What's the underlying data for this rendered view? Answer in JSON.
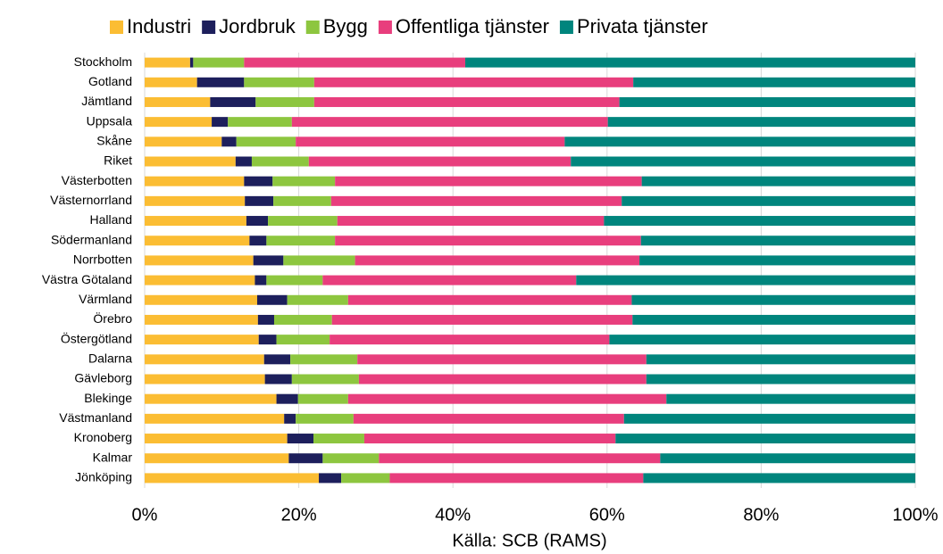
{
  "chart_data": {
    "type": "stacked_barh",
    "x_label": "Källa: SCB (RAMS)",
    "categories": [
      "Stockholm",
      "Gotland",
      "Jämtland",
      "Uppsala",
      "Skåne",
      "Riket",
      "Västerbotten",
      "Västernorrland",
      "Halland",
      "Södermanland",
      "Norrbotten",
      "Västra Götaland",
      "Värmland",
      "Örebro",
      "Östergötland",
      "Dalarna",
      "Gävleborg",
      "Blekinge",
      "Västmanland",
      "Kronoberg",
      "Kalmar",
      "Jönköping"
    ],
    "series": [
      {
        "name": "Industri",
        "color": "#fbbd33",
        "values": [
          5.9,
          6.8,
          8.5,
          8.7,
          10.0,
          11.8,
          12.9,
          13.0,
          13.2,
          13.6,
          14.1,
          14.3,
          14.6,
          14.7,
          14.8,
          15.5,
          15.6,
          17.1,
          18.1,
          18.5,
          18.7,
          22.6
        ]
      },
      {
        "name": "Jordbruk",
        "color": "#1d1f5c",
        "values": [
          0.4,
          6.1,
          5.9,
          2.1,
          1.9,
          2.1,
          3.7,
          3.7,
          2.8,
          2.2,
          3.9,
          1.5,
          3.9,
          2.1,
          2.3,
          3.4,
          3.5,
          2.8,
          1.5,
          3.4,
          4.4,
          2.9
        ]
      },
      {
        "name": "Bygg",
        "color": "#8dc63f",
        "values": [
          6.6,
          9.1,
          7.6,
          8.3,
          7.7,
          7.4,
          8.1,
          7.5,
          9.0,
          8.9,
          9.3,
          7.3,
          7.9,
          7.5,
          6.9,
          8.7,
          8.7,
          6.5,
          7.5,
          6.6,
          7.3,
          6.3
        ]
      },
      {
        "name": "Offentliga tjänster",
        "color": "#e83e7d",
        "values": [
          28.7,
          41.4,
          39.6,
          41.0,
          34.9,
          34.0,
          39.8,
          37.7,
          34.6,
          39.7,
          36.9,
          32.9,
          36.8,
          39.0,
          36.3,
          37.5,
          37.3,
          41.3,
          35.1,
          32.6,
          36.5,
          32.9
        ]
      },
      {
        "name": "Privata tjänster",
        "color": "#00857d",
        "values": [
          58.4,
          36.6,
          38.4,
          39.9,
          45.5,
          44.7,
          35.5,
          38.1,
          40.4,
          35.6,
          35.8,
          44.0,
          36.8,
          36.7,
          39.7,
          34.9,
          34.9,
          32.3,
          37.8,
          38.9,
          33.1,
          35.3
        ]
      }
    ],
    "xlim": [
      0,
      100
    ],
    "xticks": [
      {
        "value": 0,
        "label": "0%"
      },
      {
        "value": 20,
        "label": "20%"
      },
      {
        "value": 40,
        "label": "40%"
      },
      {
        "value": 60,
        "label": "60%"
      },
      {
        "value": 80,
        "label": "80%"
      },
      {
        "value": 100,
        "label": "100%"
      }
    ],
    "grid": true,
    "legend": "top"
  }
}
